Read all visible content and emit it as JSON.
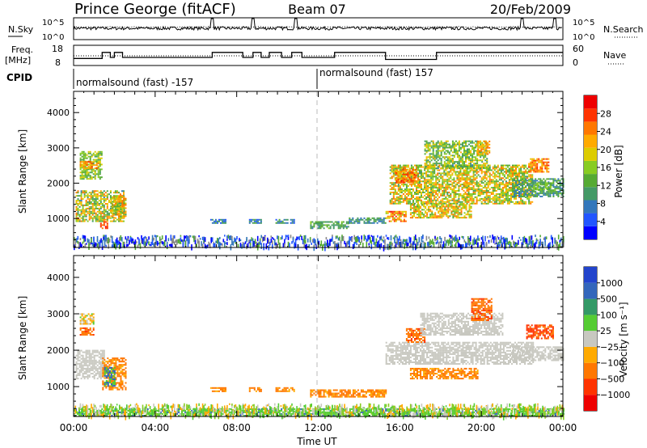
{
  "header": {
    "title": "Prince George (fitACF)",
    "beam": "Beam 07",
    "date": "20/Feb/2009"
  },
  "noise_panel": {
    "left_label": "N.Sky",
    "right_label": "N.Search",
    "left_ticks": [
      "10^5",
      "10^0"
    ],
    "right_ticks": [
      "10^5",
      "10^0"
    ]
  },
  "freq_panel": {
    "left_label_1": "Freq.",
    "left_label_2": "[MHz]",
    "left_ticks": [
      "18",
      "8"
    ],
    "right_label": "Nave",
    "right_ticks": [
      "60",
      "0"
    ],
    "freq_steps": [
      [
        0,
        11.5
      ],
      [
        1.4,
        14.5
      ],
      [
        1.8,
        12
      ],
      [
        2.0,
        14.5
      ],
      [
        2.4,
        12
      ],
      [
        6.8,
        14.5
      ],
      [
        8.3,
        12
      ],
      [
        8.8,
        14.5
      ],
      [
        9.2,
        12
      ],
      [
        9.6,
        14.5
      ],
      [
        10.2,
        12
      ],
      [
        10.7,
        14.5
      ],
      [
        11.2,
        12
      ],
      [
        12.8,
        14.5
      ],
      [
        15.3,
        11
      ],
      [
        17.8,
        14.5
      ],
      [
        24,
        14.5
      ]
    ]
  },
  "cpid": {
    "label": "CPID",
    "segments": [
      {
        "label": "normalsound (fast) -157",
        "start_hour": 0
      },
      {
        "label": "normalsound (fast) 157",
        "start_hour": 12
      }
    ]
  },
  "power_panel": {
    "ylabel": "Slant Range [km]",
    "yticks": [
      "1000",
      "2000",
      "3000",
      "4000"
    ],
    "colorbar_label": "Power [dB]",
    "colorbar_ticks": [
      "4",
      "8",
      "12",
      "16",
      "20",
      "24",
      "28"
    ]
  },
  "velocity_panel": {
    "ylabel": "Slant Range [km]",
    "yticks": [
      "1000",
      "2000",
      "3000",
      "4000"
    ],
    "colorbar_label": "Velocity [m s⁻¹]",
    "colorbar_ticks": [
      "1000",
      "500",
      "100",
      "25",
      "−25",
      "−100",
      "−500",
      "−1000"
    ]
  },
  "x_axis": {
    "label": "Time UT",
    "ticks": [
      "00:00",
      "04:00",
      "08:00",
      "12:00",
      "16:00",
      "20:00",
      "00:00"
    ]
  },
  "chart_data": {
    "type": "heatmap",
    "x_range_hours": [
      0,
      24
    ],
    "y_range_km": [
      180,
      4600
    ],
    "power_scale_db": [
      0,
      30
    ],
    "velocity_scale": [
      -1000,
      1000
    ],
    "power_colors": [
      "#0000ff",
      "#2255ff",
      "#3377bb",
      "#449966",
      "#55aa33",
      "#88cc22",
      "#ddcc00",
      "#ffaa00",
      "#ff7700",
      "#ff3300",
      "#ee0000"
    ],
    "velocity_colors": [
      "#2244cc",
      "#3366bb",
      "#339966",
      "#55cc33",
      "#c8c8c0",
      "#ffaa00",
      "#ff7700",
      "#ff3300",
      "#ee0000"
    ],
    "power_regions": [
      {
        "t": [
          0.1,
          2.5
        ],
        "r": [
          900,
          1800
        ],
        "p": [
          8,
          24
        ]
      },
      {
        "t": [
          0.3,
          1.4
        ],
        "r": [
          2100,
          2900
        ],
        "p": [
          10,
          18
        ]
      },
      {
        "t": [
          1.3,
          1.7
        ],
        "r": [
          700,
          900
        ],
        "p": [
          22,
          28
        ]
      },
      {
        "t": [
          1.8,
          2.6
        ],
        "r": [
          1000,
          1600
        ],
        "p": [
          10,
          24
        ]
      },
      {
        "t": [
          0.3,
          1.2
        ],
        "r": [
          2400,
          2600
        ],
        "p": [
          18,
          26
        ]
      },
      {
        "t": [
          6.7,
          7.5
        ],
        "r": [
          850,
          950
        ],
        "p": [
          4,
          12
        ]
      },
      {
        "t": [
          8.6,
          9.2
        ],
        "r": [
          850,
          950
        ],
        "p": [
          4,
          12
        ]
      },
      {
        "t": [
          9.9,
          10.8
        ],
        "r": [
          850,
          950
        ],
        "p": [
          4,
          12
        ]
      },
      {
        "t": [
          11.6,
          13.5
        ],
        "r": [
          700,
          900
        ],
        "p": [
          8,
          14
        ]
      },
      {
        "t": [
          13.5,
          15.3
        ],
        "r": [
          850,
          1000
        ],
        "p": [
          6,
          12
        ]
      },
      {
        "t": [
          15.3,
          16.3
        ],
        "r": [
          900,
          1200
        ],
        "p": [
          16,
          28
        ]
      },
      {
        "t": [
          15.5,
          22.5
        ],
        "r": [
          1400,
          2500
        ],
        "p": [
          10,
          24
        ]
      },
      {
        "t": [
          15.8,
          16.8
        ],
        "r": [
          2000,
          2400
        ],
        "p": [
          18,
          28
        ]
      },
      {
        "t": [
          16.5,
          19.5
        ],
        "r": [
          1000,
          1400
        ],
        "p": [
          12,
          24
        ]
      },
      {
        "t": [
          17.2,
          20.3
        ],
        "r": [
          2400,
          3200
        ],
        "p": [
          8,
          20
        ]
      },
      {
        "t": [
          19.8,
          20.4
        ],
        "r": [
          2800,
          3200
        ],
        "p": [
          18,
          24
        ]
      },
      {
        "t": [
          21.5,
          24
        ],
        "r": [
          1600,
          2100
        ],
        "p": [
          6,
          14
        ]
      },
      {
        "t": [
          22.3,
          23.3
        ],
        "r": [
          2300,
          2700
        ],
        "p": [
          18,
          26
        ]
      },
      {
        "t": [
          22.4,
          23.5
        ],
        "r": [
          1800,
          2000
        ],
        "p": [
          10,
          16
        ]
      }
    ],
    "velocity_regions": [
      {
        "t": [
          0.1,
          1.5
        ],
        "r": [
          1200,
          2000
        ],
        "v": [
          -20,
          20
        ]
      },
      {
        "t": [
          1.4,
          2.6
        ],
        "r": [
          900,
          1800
        ],
        "v": [
          -150,
          -80
        ]
      },
      {
        "t": [
          0.3,
          1.0
        ],
        "r": [
          2400,
          2600
        ],
        "v": [
          -600,
          -300
        ]
      },
      {
        "t": [
          0.3,
          1.0
        ],
        "r": [
          2700,
          3000
        ],
        "v": [
          -100,
          50
        ]
      },
      {
        "t": [
          1.5,
          2.0
        ],
        "r": [
          1000,
          1500
        ],
        "v": [
          60,
          150
        ]
      },
      {
        "t": [
          6.7,
          7.5
        ],
        "r": [
          850,
          950
        ],
        "v": [
          -150,
          -80
        ]
      },
      {
        "t": [
          8.6,
          9.2
        ],
        "r": [
          850,
          950
        ],
        "v": [
          -150,
          -80
        ]
      },
      {
        "t": [
          9.9,
          10.8
        ],
        "r": [
          850,
          950
        ],
        "v": [
          -150,
          -80
        ]
      },
      {
        "t": [
          11.6,
          15.3
        ],
        "r": [
          700,
          900
        ],
        "v": [
          -150,
          -80
        ]
      },
      {
        "t": [
          15.3,
          22.5
        ],
        "r": [
          1600,
          2200
        ],
        "v": [
          -20,
          20
        ]
      },
      {
        "t": [
          16.3,
          17.2
        ],
        "r": [
          2200,
          2600
        ],
        "v": [
          -600,
          -300
        ]
      },
      {
        "t": [
          17.0,
          21.0
        ],
        "r": [
          2400,
          3000
        ],
        "v": [
          -20,
          20
        ]
      },
      {
        "t": [
          19.5,
          20.5
        ],
        "r": [
          2800,
          3400
        ],
        "v": [
          -600,
          -300
        ]
      },
      {
        "t": [
          16.5,
          19.8
        ],
        "r": [
          1200,
          1500
        ],
        "v": [
          -150,
          -80
        ]
      },
      {
        "t": [
          21.5,
          24
        ],
        "r": [
          1700,
          2100
        ],
        "v": [
          -20,
          20
        ]
      },
      {
        "t": [
          22.2,
          23.5
        ],
        "r": [
          2300,
          2700
        ],
        "v": [
          -700,
          -400
        ]
      },
      {
        "t": [
          0,
          24
        ],
        "r": [
          180,
          400
        ],
        "v": [
          30,
          120
        ]
      }
    ]
  }
}
